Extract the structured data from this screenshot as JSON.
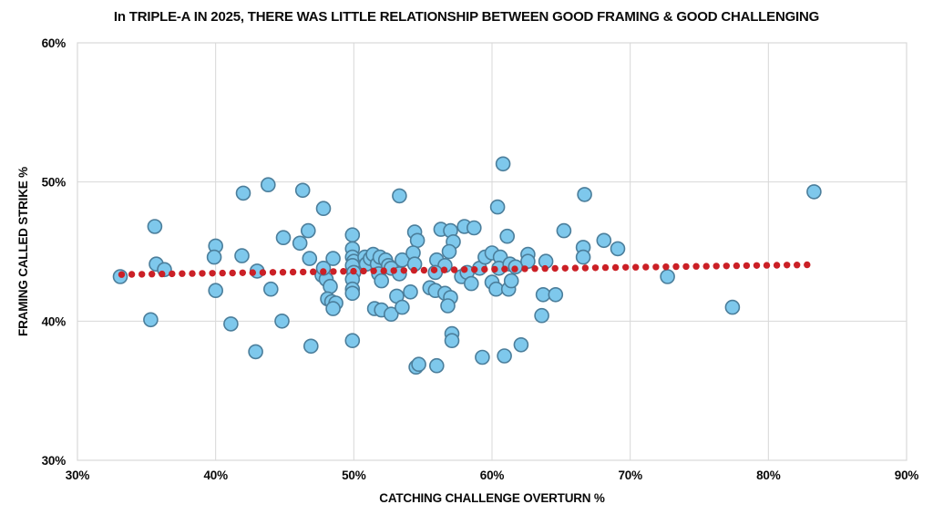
{
  "chart_data": {
    "type": "scatter",
    "title": "In TRIPLE-A IN 2025, THERE WAS LITTLE RELATIONSHIP BETWEEN GOOD FRAMING & GOOD CHALLENGING",
    "xlabel": "CATCHING CHALLENGE OVERTURN %",
    "ylabel": "FRAMING CALLED STRIKE %",
    "xlim": [
      30,
      90
    ],
    "ylim": [
      30,
      60
    ],
    "x_tick_values": [
      30,
      40,
      50,
      60,
      70,
      80,
      90
    ],
    "x_tick_labels": [
      "30%",
      "40%",
      "50%",
      "60%",
      "70%",
      "80%",
      "90%"
    ],
    "y_tick_values": [
      30,
      40,
      50,
      60
    ],
    "y_tick_labels": [
      "30%",
      "40%",
      "50%",
      "60%"
    ],
    "grid": true,
    "legend": "none",
    "point_color": "#7ec8ec",
    "point_stroke": "#4b7e9b",
    "grid_color": "#d8d8d8",
    "trend": {
      "style": "dotted",
      "color": "#cb2026",
      "x_start": 33.2,
      "y_start": 43.35,
      "x_end": 82.8,
      "y_end": 44.05
    },
    "points": [
      [
        33.1,
        43.2
      ],
      [
        35.6,
        46.8
      ],
      [
        35.3,
        40.1
      ],
      [
        35.7,
        44.1
      ],
      [
        36.3,
        43.7
      ],
      [
        40.0,
        45.4
      ],
      [
        39.9,
        44.6
      ],
      [
        40.0,
        42.2
      ],
      [
        41.1,
        39.8
      ],
      [
        41.9,
        44.7
      ],
      [
        42.0,
        49.2
      ],
      [
        43.0,
        43.6
      ],
      [
        43.8,
        49.8
      ],
      [
        44.0,
        42.3
      ],
      [
        44.9,
        46.0
      ],
      [
        44.8,
        40.0
      ],
      [
        42.9,
        37.8
      ],
      [
        46.3,
        49.4
      ],
      [
        46.7,
        46.5
      ],
      [
        46.1,
        45.6
      ],
      [
        46.8,
        44.5
      ],
      [
        46.9,
        38.2
      ],
      [
        47.8,
        48.1
      ],
      [
        47.7,
        43.3
      ],
      [
        48.0,
        43.0
      ],
      [
        47.8,
        43.8
      ],
      [
        48.5,
        44.5
      ],
      [
        48.3,
        42.5
      ],
      [
        48.1,
        41.6
      ],
      [
        48.4,
        41.4
      ],
      [
        48.7,
        41.3
      ],
      [
        48.5,
        40.9
      ],
      [
        49.9,
        46.2
      ],
      [
        49.9,
        45.2
      ],
      [
        49.9,
        44.6
      ],
      [
        50.0,
        44.3
      ],
      [
        49.9,
        44.0
      ],
      [
        50.0,
        43.5
      ],
      [
        49.9,
        43.0
      ],
      [
        49.9,
        42.3
      ],
      [
        49.9,
        42.0
      ],
      [
        49.9,
        38.6
      ],
      [
        50.8,
        44.6
      ],
      [
        50.9,
        44.1
      ],
      [
        51.2,
        44.5
      ],
      [
        51.4,
        44.8
      ],
      [
        51.7,
        44.1
      ],
      [
        51.9,
        44.6
      ],
      [
        52.3,
        44.4
      ],
      [
        52.5,
        44.0
      ],
      [
        52.7,
        43.8
      ],
      [
        51.8,
        43.4
      ],
      [
        53.3,
        43.4
      ],
      [
        52.0,
        42.9
      ],
      [
        51.5,
        40.9
      ],
      [
        52.0,
        40.8
      ],
      [
        52.7,
        40.5
      ],
      [
        53.1,
        41.8
      ],
      [
        53.5,
        41.0
      ],
      [
        53.3,
        49.0
      ],
      [
        53.5,
        44.4
      ],
      [
        54.4,
        46.4
      ],
      [
        54.6,
        45.8
      ],
      [
        54.3,
        44.9
      ],
      [
        54.4,
        44.1
      ],
      [
        54.1,
        42.1
      ],
      [
        55.5,
        42.4
      ],
      [
        55.9,
        42.2
      ],
      [
        54.5,
        36.7
      ],
      [
        54.7,
        36.9
      ],
      [
        56.0,
        36.8
      ],
      [
        56.3,
        46.6
      ],
      [
        57.0,
        46.5
      ],
      [
        58.0,
        46.8
      ],
      [
        58.7,
        46.7
      ],
      [
        57.2,
        45.7
      ],
      [
        56.9,
        45.0
      ],
      [
        56.0,
        44.4
      ],
      [
        56.6,
        44.0
      ],
      [
        55.9,
        43.5
      ],
      [
        57.8,
        43.2
      ],
      [
        58.2,
        43.5
      ],
      [
        59.1,
        43.8
      ],
      [
        59.5,
        44.6
      ],
      [
        58.5,
        42.7
      ],
      [
        56.6,
        42.0
      ],
      [
        57.0,
        41.7
      ],
      [
        56.8,
        41.1
      ],
      [
        59.3,
        37.4
      ],
      [
        57.1,
        39.1
      ],
      [
        57.1,
        38.6
      ],
      [
        60.8,
        51.3
      ],
      [
        60.4,
        48.2
      ],
      [
        61.1,
        46.1
      ],
      [
        60.0,
        44.9
      ],
      [
        60.6,
        44.6
      ],
      [
        60.5,
        43.8
      ],
      [
        61.3,
        44.1
      ],
      [
        61.7,
        43.9
      ],
      [
        60.0,
        42.8
      ],
      [
        60.3,
        42.3
      ],
      [
        61.2,
        42.3
      ],
      [
        61.4,
        42.9
      ],
      [
        60.9,
        37.5
      ],
      [
        62.1,
        38.3
      ],
      [
        62.6,
        44.8
      ],
      [
        62.6,
        44.3
      ],
      [
        63.9,
        44.3
      ],
      [
        63.7,
        41.9
      ],
      [
        64.6,
        41.9
      ],
      [
        63.6,
        40.4
      ],
      [
        65.2,
        46.5
      ],
      [
        66.7,
        49.1
      ],
      [
        66.6,
        45.3
      ],
      [
        66.6,
        44.6
      ],
      [
        68.1,
        45.8
      ],
      [
        69.1,
        45.2
      ],
      [
        72.7,
        43.2
      ],
      [
        77.4,
        41.0
      ],
      [
        83.3,
        49.3
      ]
    ]
  }
}
